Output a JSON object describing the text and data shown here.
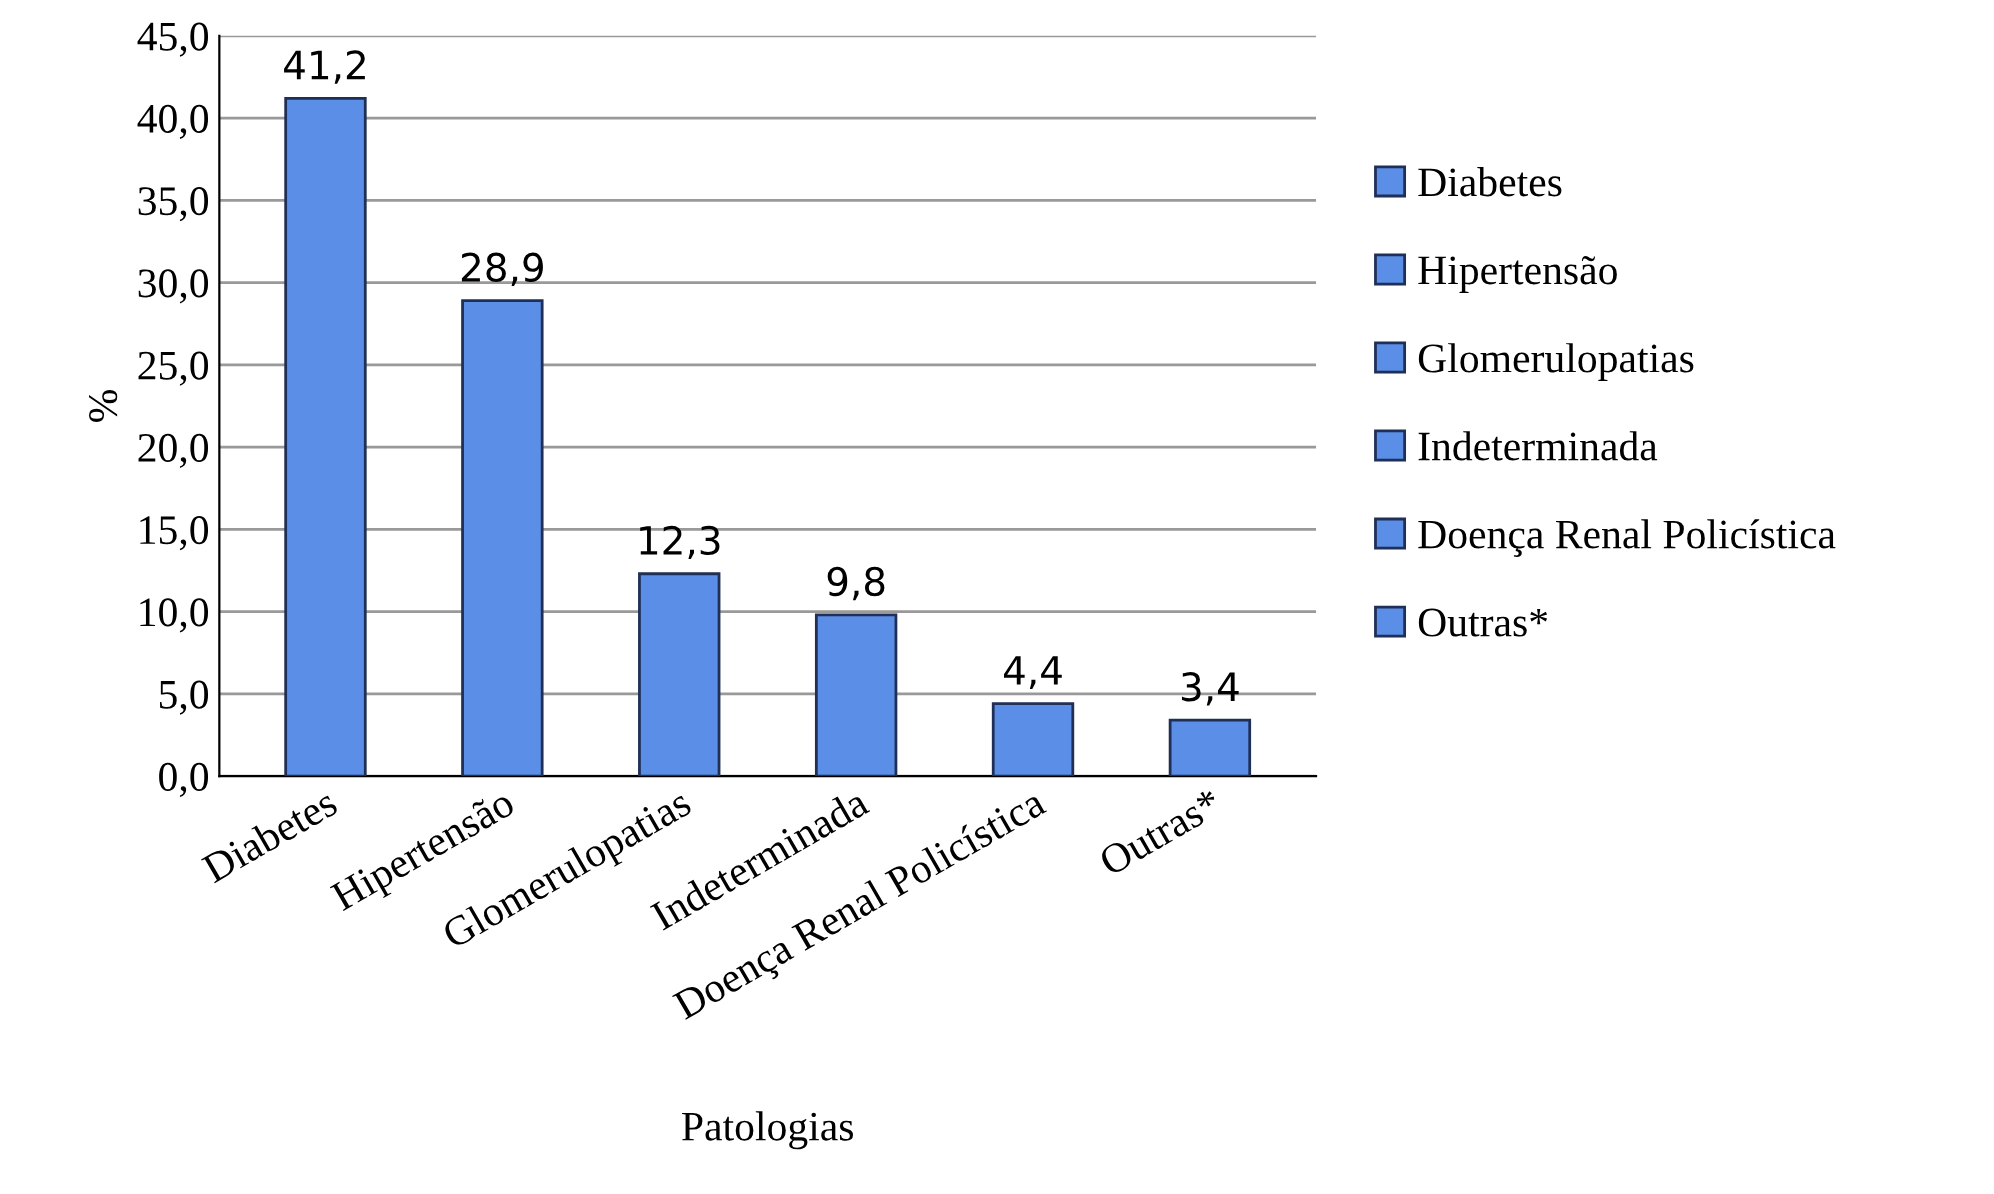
{
  "chart_data": {
    "type": "bar",
    "xlabel": "Patologias",
    "ylabel": "%",
    "categories": [
      "Diabetes",
      "Hipertensão",
      "Glomerulopatias",
      "Indeterminada",
      "Doença Renal Policística",
      "Outras*"
    ],
    "series": [
      {
        "name": "Diabetes",
        "color": "#5b8ee6",
        "values": [
          41.2,
          null,
          null,
          null,
          null,
          null
        ],
        "value_labels": [
          "41,2",
          null,
          null,
          null,
          null,
          null
        ]
      },
      {
        "name": "Hipertensão",
        "color": "#5b8ee6",
        "values": [
          null,
          28.9,
          null,
          null,
          null,
          null
        ],
        "value_labels": [
          null,
          "28,9",
          null,
          null,
          null,
          null
        ]
      },
      {
        "name": "Glomerulopatias",
        "color": "#5b8ee6",
        "values": [
          null,
          null,
          12.3,
          null,
          null,
          null
        ],
        "value_labels": [
          null,
          null,
          "12,3",
          null,
          null,
          null
        ]
      },
      {
        "name": "Indeterminada",
        "color": "#5b8ee6",
        "values": [
          null,
          null,
          null,
          9.8,
          null,
          null
        ],
        "value_labels": [
          null,
          null,
          null,
          "9,8",
          null,
          null
        ]
      },
      {
        "name": "Doença Renal Policística",
        "color": "#5b8ee6",
        "values": [
          null,
          null,
          null,
          null,
          4.4,
          null
        ],
        "value_labels": [
          null,
          null,
          null,
          null,
          "4,4",
          null
        ]
      },
      {
        "name": "Outras*",
        "color": "#5b8ee6",
        "values": [
          null,
          null,
          null,
          null,
          null,
          3.4
        ],
        "value_labels": [
          null,
          null,
          null,
          null,
          null,
          "3,4"
        ]
      }
    ],
    "ylim": [
      0,
      45
    ],
    "yticks": [
      {
        "value": 0,
        "label": "0,0"
      },
      {
        "value": 5,
        "label": "5,0"
      },
      {
        "value": 10,
        "label": "10,0"
      },
      {
        "value": 15,
        "label": "15,0"
      },
      {
        "value": 20,
        "label": "20,0"
      },
      {
        "value": 25,
        "label": "25,0"
      },
      {
        "value": 30,
        "label": "30,0"
      },
      {
        "value": 35,
        "label": "35,0"
      },
      {
        "value": 40,
        "label": "40,0"
      },
      {
        "value": 45,
        "label": "45,0"
      }
    ],
    "grid": "y",
    "legend": "right"
  }
}
